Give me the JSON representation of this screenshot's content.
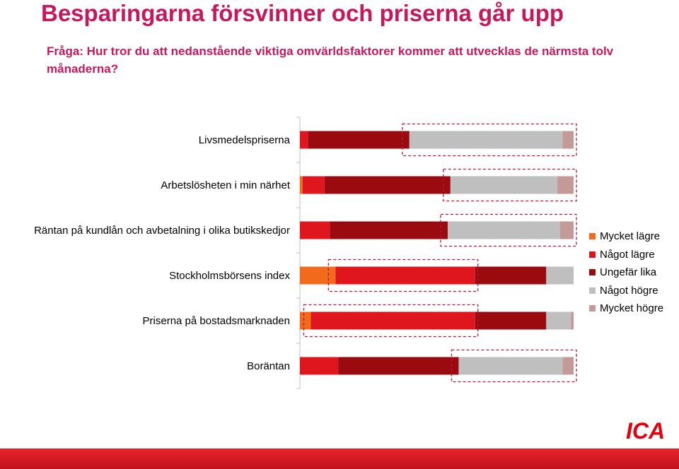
{
  "header": {
    "title": "Besparingarna försvinner och priserna går upp",
    "question": "Fråga: Hur tror du att nedanstående viktiga omvärldsfaktorer kommer att utvecklas de närmsta tolv månaderna?"
  },
  "chart_data": {
    "type": "bar",
    "orientation": "horizontal",
    "stacked": true,
    "categories": [
      "Livsmedelspriserna",
      "Arbetslösheten i min närhet",
      "Räntan på kundlån och avbetalning i olika butikskedjor",
      "Stockholmsbörsens index",
      "Priserna på bostadsmarknaden",
      "Boräntan"
    ],
    "series": [
      {
        "name": "Mycket lägre",
        "color": "#f26b1d",
        "values": [
          0,
          1,
          0,
          13,
          4,
          0
        ]
      },
      {
        "name": "Något lägre",
        "color": "#e0161f",
        "values": [
          3,
          8,
          11,
          51,
          60,
          14
        ]
      },
      {
        "name": "Ungefär lika",
        "color": "#9b0a0f",
        "values": [
          37,
          46,
          43,
          26,
          26,
          44
        ]
      },
      {
        "name": "Något högre",
        "color": "#bfbfbf",
        "values": [
          56,
          39,
          41,
          10,
          9,
          38
        ]
      },
      {
        "name": "Mycket högre",
        "color": "#c49a98",
        "values": [
          4,
          6,
          5,
          0,
          1,
          4
        ]
      }
    ],
    "xlim": [
      0,
      100
    ],
    "grid": false,
    "legend": "right",
    "highlights": [
      {
        "category": "Livsmedelspriserna",
        "series": [
          "Något högre",
          "Mycket högre"
        ]
      },
      {
        "category": "Arbetslösheten i min närhet",
        "series": [
          "Något högre",
          "Mycket högre"
        ]
      },
      {
        "category": "Räntan på kundlån och avbetalning i olika butikskedjor",
        "series": [
          "Något högre",
          "Mycket högre"
        ]
      },
      {
        "category": "Stockholmsbörsens index",
        "series": [
          "Något lägre"
        ]
      },
      {
        "category": "Priserna på bostadsmarknaden",
        "series": [
          "Något lägre"
        ]
      },
      {
        "category": "Boräntan",
        "series": [
          "Något högre",
          "Mycket högre"
        ]
      }
    ]
  },
  "brand": {
    "logo_text": "ICA",
    "accent": "#e3000f"
  }
}
